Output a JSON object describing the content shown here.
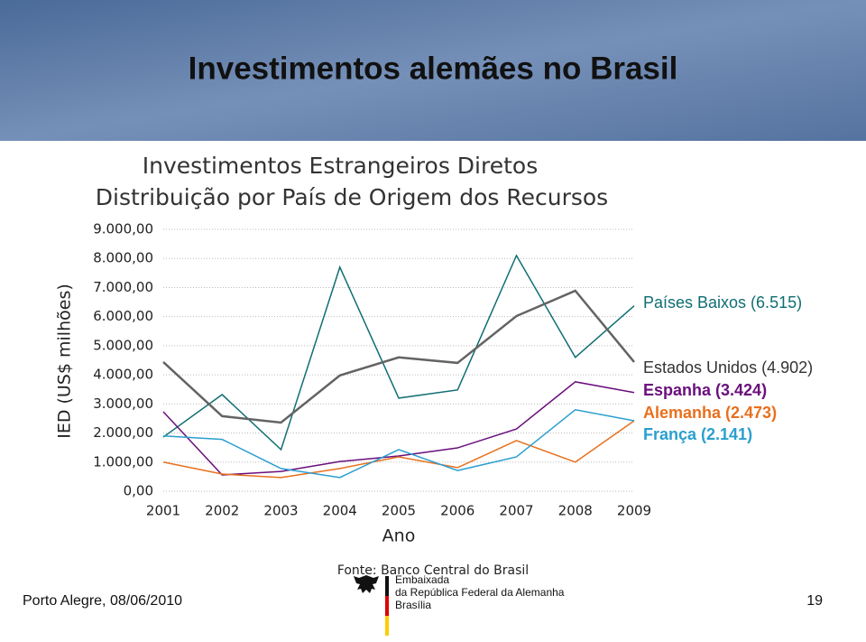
{
  "slide": {
    "title": "Investimentos alemães no Brasil",
    "footer_left": "Porto Alegre, 08/06/2010",
    "page_number": "19",
    "logo": [
      "Embaixada",
      "da República Federal da Alemanha",
      "Brasília"
    ]
  },
  "chart_data": {
    "type": "line",
    "title": [
      "Investimentos Estrangeiros Diretos",
      "Distribuição por País de Origem dos Recursos"
    ],
    "y_label": "IED (US$ milhões)",
    "x_label": "Ano",
    "source": "Fonte: Banco Central do Brasil",
    "categories": [
      "2001",
      "2002",
      "2003",
      "2004",
      "2005",
      "2006",
      "2007",
      "2008",
      "2009"
    ],
    "ylim": [
      0,
      9000
    ],
    "yticks": [
      {
        "value": 0,
        "label": "0,00"
      },
      {
        "value": 1000,
        "label": "1.000,00"
      },
      {
        "value": 2000,
        "label": "2.000,00"
      },
      {
        "value": 3000,
        "label": "3.000,00"
      },
      {
        "value": 4000,
        "label": "4.000,00"
      },
      {
        "value": 5000,
        "label": "5.000,00"
      },
      {
        "value": 6000,
        "label": "6.000,00"
      },
      {
        "value": 7000,
        "label": "7.000,00"
      },
      {
        "value": 8000,
        "label": "8.000,00"
      },
      {
        "value": 9000,
        "label": "9.000,00"
      }
    ],
    "grid": true,
    "series": [
      {
        "name": "Países Baixos (6.515)",
        "color": "#0f6e72",
        "values": [
          1860,
          3320,
          1430,
          7700,
          3200,
          3480,
          8100,
          4600,
          6370
        ]
      },
      {
        "name": "Estados Unidos (4.902)",
        "color": "#636363",
        "values": [
          4440,
          2580,
          2360,
          3980,
          4600,
          4410,
          6020,
          6890,
          4440
        ]
      },
      {
        "name": "Espanha (3.424)",
        "color": "#6a0f7c",
        "values": [
          2730,
          560,
          680,
          1020,
          1210,
          1490,
          2140,
          3760,
          3390
        ]
      },
      {
        "name": "Alemanha (2.473)",
        "color": "#e8701e",
        "values": [
          1000,
          590,
          470,
          780,
          1180,
          810,
          1740,
          1000,
          2420
        ]
      },
      {
        "name": "França (2.141)",
        "color": "#2a9fcf",
        "values": [
          1900,
          1780,
          780,
          470,
          1430,
          710,
          1180,
          2800,
          2420
        ]
      }
    ]
  }
}
